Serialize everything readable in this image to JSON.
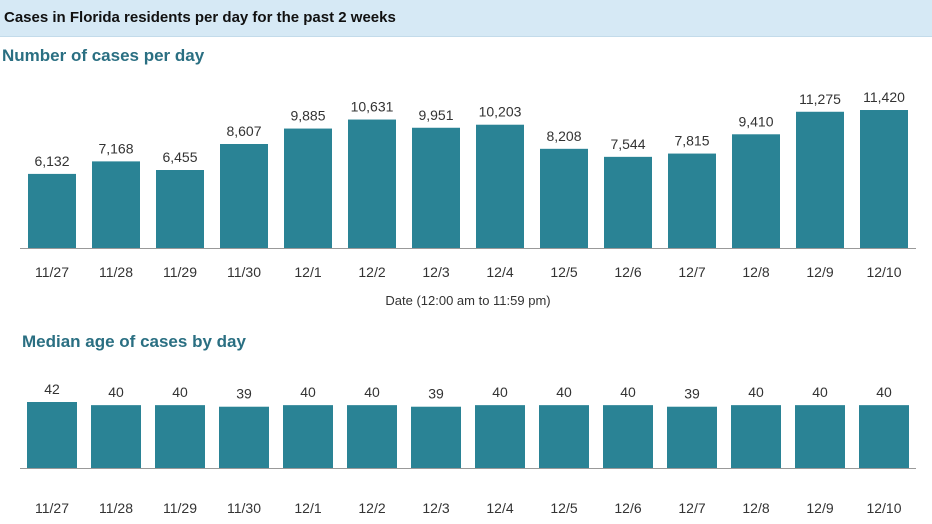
{
  "header": {
    "title": "Cases in Florida residents per day for the past 2 weeks"
  },
  "colors": {
    "bar": "#2a8395",
    "baseline": "#999999",
    "banner": "#d6e9f5",
    "section_title": "#2a6f82"
  },
  "chart_data": [
    {
      "type": "bar",
      "title": "Number of cases per day",
      "xlabel": "Date (12:00 am to 11:59 pm)",
      "ylabel": "",
      "categories": [
        "11/27",
        "11/28",
        "11/29",
        "11/30",
        "12/1",
        "12/2",
        "12/3",
        "12/4",
        "12/5",
        "12/6",
        "12/7",
        "12/8",
        "12/9",
        "12/10"
      ],
      "values": [
        6132,
        7168,
        6455,
        8607,
        9885,
        10631,
        9951,
        10203,
        8208,
        7544,
        7815,
        9410,
        11275,
        11420
      ],
      "value_labels": [
        "6,132",
        "7,168",
        "6,455",
        "8,607",
        "9,885",
        "10,631",
        "9,951",
        "10,203",
        "8,208",
        "7,544",
        "7,815",
        "9,410",
        "11,275",
        "11,420"
      ],
      "ylim": [
        0,
        12000
      ],
      "grid": false
    },
    {
      "type": "bar",
      "title": "Median age of cases by day",
      "xlabel": "",
      "ylabel": "",
      "categories": [
        "11/27",
        "11/28",
        "11/29",
        "11/30",
        "12/1",
        "12/2",
        "12/3",
        "12/4",
        "12/5",
        "12/6",
        "12/7",
        "12/8",
        "12/9",
        "12/10"
      ],
      "values": [
        42,
        40,
        40,
        39,
        40,
        40,
        39,
        40,
        40,
        40,
        39,
        40,
        40,
        40
      ],
      "value_labels": [
        "42",
        "40",
        "40",
        "39",
        "40",
        "40",
        "39",
        "40",
        "40",
        "40",
        "39",
        "40",
        "40",
        "40"
      ],
      "ylim": [
        0,
        42
      ],
      "grid": false
    }
  ]
}
